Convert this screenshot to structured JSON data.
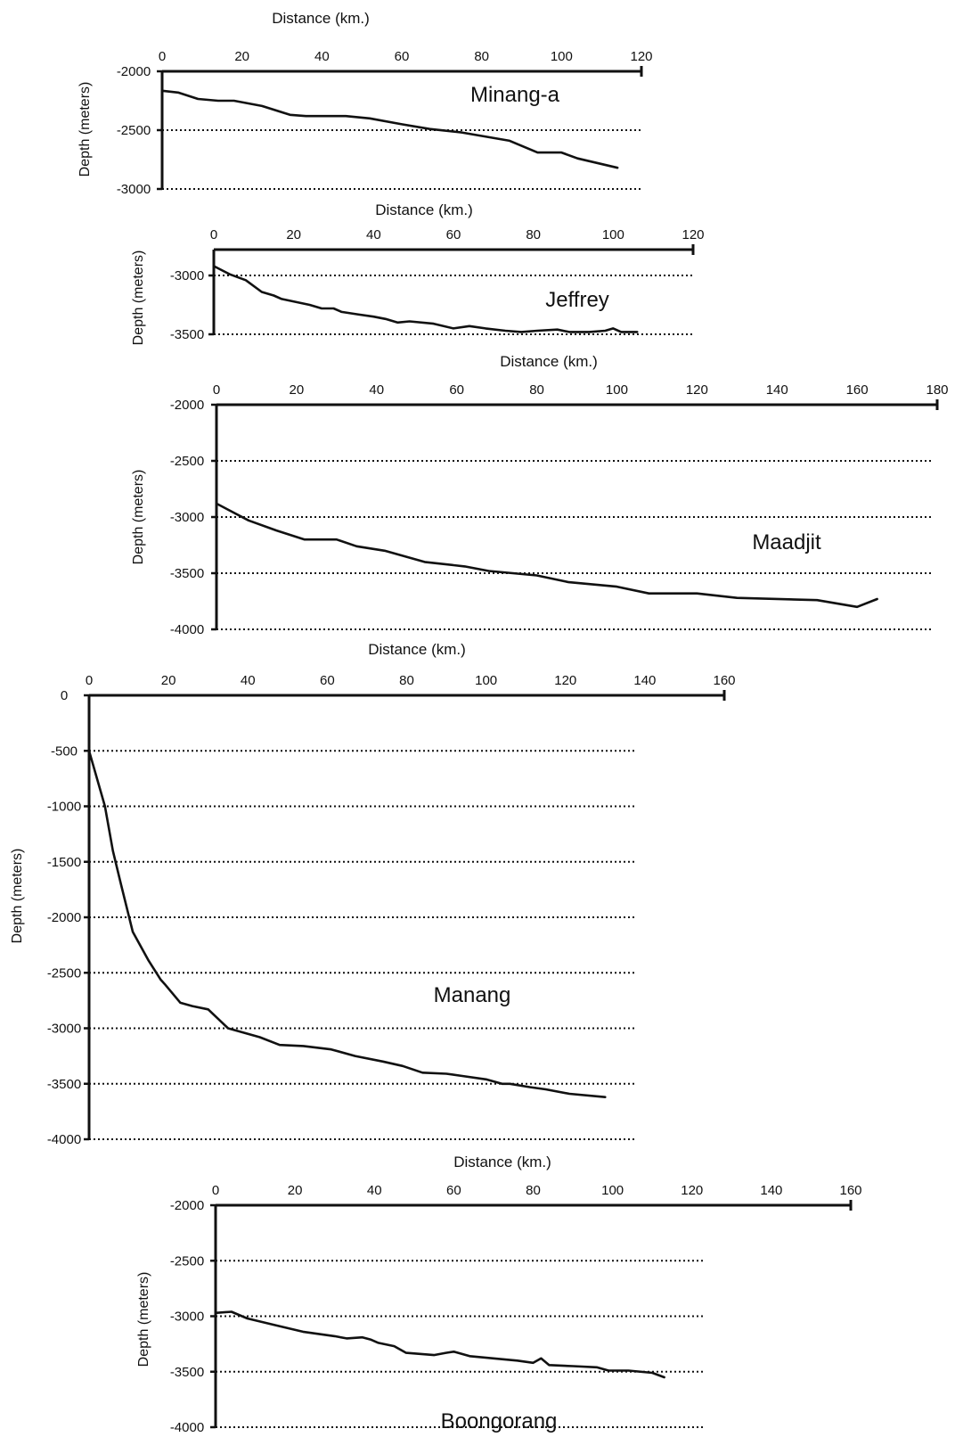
{
  "chart_data": [
    {
      "type": "line",
      "label": "Minang-a",
      "xlabel": "Distance (km.)",
      "ylabel": "Depth (meters)",
      "xlim": [
        0,
        120
      ],
      "ylim": [
        -3000,
        -2000
      ],
      "xticks": [
        0,
        20,
        40,
        60,
        80,
        100,
        120
      ],
      "yticks": [
        -2000,
        -2500,
        -3000
      ],
      "ytick_labels": [
        "-2000",
        "-2500",
        "-3000"
      ],
      "gridlines": [
        -2500,
        -3000
      ],
      "series": [
        {
          "x": [
            0,
            4,
            9,
            14,
            18,
            25,
            32,
            36,
            46,
            52,
            60,
            67,
            75,
            87,
            94,
            100,
            104,
            114
          ],
          "y": [
            -2165,
            -2180,
            -2235,
            -2250,
            -2250,
            -2295,
            -2370,
            -2380,
            -2380,
            -2400,
            -2450,
            -2490,
            -2520,
            -2590,
            -2690,
            -2690,
            -2740,
            -2820
          ]
        }
      ]
    },
    {
      "type": "line",
      "label": "Jeffrey",
      "xlabel": "Distance (km.)",
      "ylabel": "Depth (meters)",
      "xlim": [
        0,
        120
      ],
      "ylim": [
        -3500,
        -2780
      ],
      "xticks": [
        0,
        20,
        40,
        60,
        80,
        100,
        120
      ],
      "yticks": [
        -3000,
        -3500
      ],
      "ytick_labels": [
        "-3000",
        "-3500"
      ],
      "gridlines": [
        -3000,
        -3500
      ],
      "series": [
        {
          "x": [
            0,
            4,
            8,
            12,
            15,
            17,
            24,
            27,
            30,
            32,
            36,
            40,
            43,
            46,
            49,
            55,
            60,
            64,
            68,
            73,
            77,
            81,
            86,
            89,
            94,
            98,
            100,
            102,
            106
          ],
          "y": [
            -2920,
            -2990,
            -3040,
            -3140,
            -3170,
            -3200,
            -3250,
            -3280,
            -3280,
            -3310,
            -3330,
            -3350,
            -3370,
            -3400,
            -3390,
            -3410,
            -3450,
            -3430,
            -3450,
            -3470,
            -3480,
            -3470,
            -3460,
            -3480,
            -3480,
            -3470,
            -3450,
            -3480,
            -3480
          ]
        }
      ]
    },
    {
      "type": "line",
      "label": "Maadjit",
      "xlabel": "Distance (km.)",
      "ylabel": "Depth (meters)",
      "xlim": [
        0,
        180
      ],
      "ylim": [
        -4000,
        -2000
      ],
      "xticks": [
        0,
        20,
        40,
        60,
        80,
        100,
        120,
        140,
        160,
        180
      ],
      "yticks": [
        -2000,
        -2500,
        -3000,
        -3500,
        -4000
      ],
      "ytick_labels": [
        "-2000",
        "-2500",
        "-3000",
        "-3500",
        "-4000"
      ],
      "gridlines": [
        -2500,
        -3000,
        -3500,
        -4000
      ],
      "series": [
        {
          "x": [
            0,
            8,
            15,
            22,
            30,
            35,
            42,
            52,
            62,
            68,
            80,
            88,
            100,
            108,
            120,
            130,
            150,
            160,
            165
          ],
          "y": [
            -2880,
            -3030,
            -3120,
            -3200,
            -3200,
            -3260,
            -3300,
            -3400,
            -3440,
            -3480,
            -3520,
            -3580,
            -3620,
            -3680,
            -3680,
            -3720,
            -3740,
            -3800,
            -3730
          ]
        }
      ]
    },
    {
      "type": "line",
      "label": "Manang",
      "xlabel": "Distance (km.)",
      "ylabel": "Depth (meters)",
      "xlim": [
        0,
        160
      ],
      "ylim": [
        -4000,
        0
      ],
      "xticks": [
        0,
        20,
        40,
        60,
        80,
        100,
        120,
        140,
        160
      ],
      "yticks": [
        0,
        -500,
        -1000,
        -1500,
        -2000,
        -2500,
        -3000,
        -3500,
        -4000
      ],
      "ytick_labels": [
        "0",
        "-500",
        "-1000",
        "-1500",
        "-2000",
        "-2500",
        "-3000",
        "-3500",
        "-4000"
      ],
      "gridlines": [
        -500,
        -1000,
        -1500,
        -2000,
        -2500,
        -3000,
        -3500,
        -4000
      ],
      "series": [
        {
          "x": [
            0,
            4,
            6,
            8,
            11,
            15,
            18,
            19,
            23,
            23,
            26,
            30,
            35,
            43,
            48,
            54,
            61,
            67,
            74,
            79,
            84,
            90,
            94,
            100,
            104,
            104,
            106,
            111,
            115,
            121,
            130
          ],
          "y": [
            -500,
            -1000,
            -1400,
            -1700,
            -2130,
            -2390,
            -2560,
            -2600,
            -2770,
            -2770,
            -2800,
            -2830,
            -3000,
            -3080,
            -3150,
            -3160,
            -3190,
            -3250,
            -3300,
            -3340,
            -3400,
            -3410,
            -3430,
            -3460,
            -3500,
            -3500,
            -3500,
            -3530,
            -3550,
            -3590,
            -3620
          ]
        }
      ]
    },
    {
      "type": "line",
      "label": "Boongorang",
      "xlabel": "Distance (km.)",
      "ylabel": "Depth (meters)",
      "xlim": [
        0,
        160
      ],
      "ylim": [
        -4000,
        -2000
      ],
      "xticks": [
        0,
        20,
        40,
        60,
        80,
        100,
        120,
        140,
        160
      ],
      "yticks": [
        -2000,
        -2500,
        -3000,
        -3500,
        -4000
      ],
      "ytick_labels": [
        "-2000",
        "-2500",
        "-3000",
        "-3500",
        "-4000"
      ],
      "gridlines": [
        -2000,
        -2500,
        -3000,
        -3500,
        -4000
      ],
      "series": [
        {
          "x": [
            0,
            4,
            8,
            15,
            22,
            30,
            33,
            37,
            39,
            41,
            45,
            48,
            55,
            58,
            60,
            64,
            70,
            76,
            80,
            82,
            84,
            90,
            96,
            99,
            104,
            110,
            113
          ],
          "y": [
            -2970,
            -2960,
            -3020,
            -3080,
            -3140,
            -3180,
            -3200,
            -3190,
            -3210,
            -3240,
            -3270,
            -3330,
            -3350,
            -3330,
            -3320,
            -3360,
            -3380,
            -3400,
            -3420,
            -3380,
            -3440,
            -3450,
            -3460,
            -3490,
            -3490,
            -3510,
            -3550
          ]
        }
      ]
    }
  ]
}
